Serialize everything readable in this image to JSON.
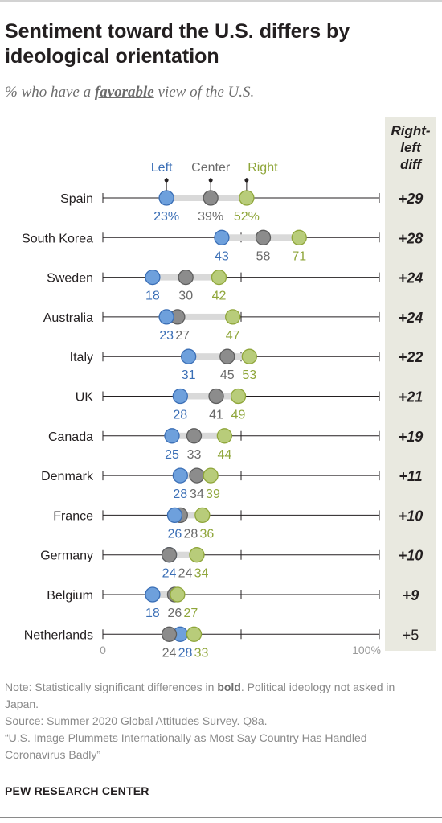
{
  "header": {
    "title": "Sentiment toward the U.S. differs by ideological orientation",
    "subtitle_prefix": "% who have a",
    "subtitle_emph": "favorable",
    "subtitle_suffix": "view of the U.S."
  },
  "diff_column": {
    "line1": "Right-",
    "line2": "left",
    "line3": "diff"
  },
  "legend": {
    "left": "Left",
    "center": "Center",
    "right": "Right"
  },
  "colors": {
    "left": "#6ea0dc",
    "center": "#8c8c8c",
    "right": "#b8cc7a",
    "left_text": "#3b6fb6",
    "center_text": "#6b6b6b",
    "right_text": "#8fa63a",
    "track": "#d9d9d9",
    "axis": "#231f20"
  },
  "chart_data": {
    "type": "dot-plot",
    "xlim": [
      0,
      100
    ],
    "axis_labels": {
      "min": "0",
      "max": "100%"
    },
    "series": [
      {
        "name": "Left"
      },
      {
        "name": "Center"
      },
      {
        "name": "Right"
      }
    ],
    "rows": [
      {
        "country": "Spain",
        "left": 23,
        "center": 39,
        "right": 52,
        "left_label": "23%",
        "center_label": "39%",
        "right_label": "52%",
        "diff": "+29",
        "bold": true
      },
      {
        "country": "South Korea",
        "left": 43,
        "center": 58,
        "right": 71,
        "left_label": "43",
        "center_label": "58",
        "right_label": "71",
        "diff": "+28",
        "bold": true
      },
      {
        "country": "Sweden",
        "left": 18,
        "center": 30,
        "right": 42,
        "left_label": "18",
        "center_label": "30",
        "right_label": "42",
        "diff": "+24",
        "bold": true
      },
      {
        "country": "Australia",
        "left": 23,
        "center": 27,
        "right": 47,
        "left_label": "23",
        "center_label": "27",
        "right_label": "47",
        "diff": "+24",
        "bold": true
      },
      {
        "country": "Italy",
        "left": 31,
        "center": 45,
        "right": 53,
        "left_label": "31",
        "center_label": "45",
        "right_label": "53",
        "diff": "+22",
        "bold": true
      },
      {
        "country": "UK",
        "left": 28,
        "center": 41,
        "right": 49,
        "left_label": "28",
        "center_label": "41",
        "right_label": "49",
        "diff": "+21",
        "bold": true
      },
      {
        "country": "Canada",
        "left": 25,
        "center": 33,
        "right": 44,
        "left_label": "25",
        "center_label": "33",
        "right_label": "44",
        "diff": "+19",
        "bold": true
      },
      {
        "country": "Denmark",
        "left": 28,
        "center": 34,
        "right": 39,
        "left_label": "28",
        "center_label": "34",
        "right_label": "39",
        "diff": "+11",
        "bold": true
      },
      {
        "country": "France",
        "left": 26,
        "center": 28,
        "right": 36,
        "left_label": "26",
        "center_label": "28",
        "right_label": "36",
        "diff": "+10",
        "bold": true
      },
      {
        "country": "Germany",
        "left": 24,
        "center": 24,
        "right": 34,
        "left_label": "24",
        "center_label": "24",
        "right_label": "34",
        "diff": "+10",
        "bold": true
      },
      {
        "country": "Belgium",
        "left": 18,
        "center": 26,
        "right": 27,
        "left_label": "18",
        "center_label": "26",
        "right_label": "27",
        "diff": "+9",
        "bold": true
      },
      {
        "country": "Netherlands",
        "left": 28,
        "center": 24,
        "right": 33,
        "left_label": "28",
        "center_label": "24",
        "right_label": "33",
        "diff": "+5",
        "bold": false
      }
    ]
  },
  "notes": {
    "note_prefix": "Note: Statistically significant differences in",
    "note_bold": "bold",
    "note_suffix": ". Political ideology not asked in Japan.",
    "source": "Source: Summer 2020 Global Attitudes Survey. Q8a.",
    "report": "“U.S. Image Plummets Internationally as Most Say Country Has Handled Coronavirus Badly”"
  },
  "footer": {
    "org": "PEW RESEARCH CENTER"
  }
}
